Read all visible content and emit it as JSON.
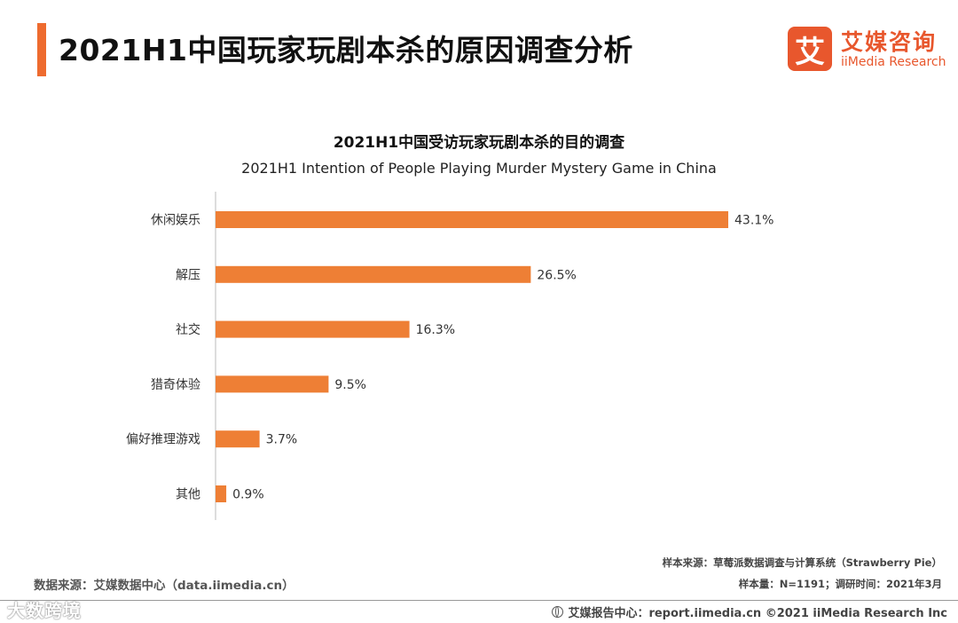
{
  "header": {
    "title": "2021H1中国玩家玩剧本杀的原因调查分析",
    "accent_color": "#ee6b2f"
  },
  "logo": {
    "mark": "艾",
    "name_cn": "艾媒咨询",
    "name_en": "iiMedia Research"
  },
  "chart_data": {
    "type": "bar",
    "orientation": "horizontal",
    "title": "2021H1中国受访玩家玩剧本杀的目的调查",
    "subtitle": "2021H1 Intention of People Playing Murder Mystery Game in China",
    "categories": [
      "休闲娱乐",
      "解压",
      "社交",
      "猎奇体验",
      "偏好推理游戏",
      "其他"
    ],
    "values": [
      43.1,
      26.5,
      16.3,
      9.5,
      3.7,
      0.9
    ],
    "labels": [
      "43.1%",
      "26.5%",
      "16.3%",
      "9.5%",
      "3.7%",
      "0.9%"
    ],
    "unit": "%",
    "xlim": [
      0,
      43.1
    ],
    "bar_color": "#ee7f35",
    "grid": false,
    "xlabel": "",
    "ylabel": ""
  },
  "source": {
    "left": "数据来源：艾媒数据中心（data.iimedia.cn）",
    "sample_source": "样本来源：草莓派数据调查与计算系统（Strawberry Pie）",
    "sample_size": "样本量：N=1191；调研时间：2021年3月"
  },
  "footer": {
    "text": "艾媒报告中心：report.iimedia.cn   ©2021  iiMedia Research  Inc"
  },
  "watermark": "大数跨境"
}
